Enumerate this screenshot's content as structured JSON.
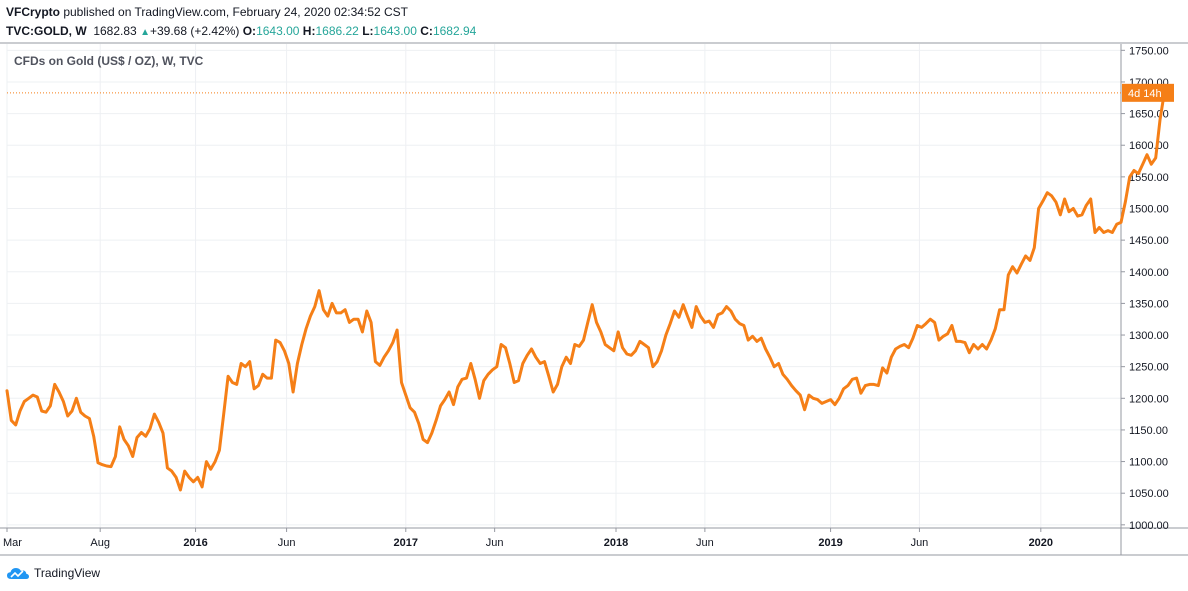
{
  "header": {
    "publisher": "VFCrypto",
    "published_text": " published on TradingView.com, February 24, 2020 02:34:52 CST",
    "symbol": "TVC:GOLD, W",
    "last": "1682.83",
    "change": "+39.68 (+2.42%)",
    "o_label": "O:",
    "o_value": "1643.00",
    "h_label": "H:",
    "h_value": "1686.22",
    "l_label": "L:",
    "l_value": "1643.00",
    "c_label": "C:",
    "c_value": "1682.94"
  },
  "footer": {
    "brand": "TradingView"
  },
  "colors": {
    "line": "#f57f17",
    "accent": "#f57f17",
    "up": "#26a69a",
    "grid": "#eef0f3",
    "axis": "#9598a1"
  },
  "chart_data": {
    "type": "line",
    "title": "CFDs on Gold (US$ / OZ), W, TVC",
    "current_label": "4d 14h",
    "current_value": 1682.83,
    "ylim": [
      995,
      1760
    ],
    "xlim": [
      0,
      257
    ],
    "y_ticks": [
      1000,
      1050,
      1100,
      1150,
      1200,
      1250,
      1300,
      1350,
      1400,
      1450,
      1500,
      1550,
      1600,
      1650,
      1700,
      1750
    ],
    "y_tick_labels": [
      "1000.00",
      "1050.00",
      "1100.00",
      "1150.00",
      "1200.00",
      "1250.00",
      "1300.00",
      "1350.00",
      "1400.00",
      "1450.00",
      "1500.00",
      "1550.00",
      "1600.00",
      "1650.00",
      "1700.00",
      "1750.00"
    ],
    "x_ticks": [
      {
        "label": "Mar",
        "x": 0,
        "bold": false
      },
      {
        "label": "Aug",
        "x": 21.5,
        "bold": false
      },
      {
        "label": "2016",
        "x": 43.5,
        "bold": true
      },
      {
        "label": "Jun",
        "x": 64.5,
        "bold": false
      },
      {
        "label": "2017",
        "x": 92,
        "bold": true
      },
      {
        "label": "Jun",
        "x": 112.5,
        "bold": false
      },
      {
        "label": "2018",
        "x": 140.5,
        "bold": true
      },
      {
        "label": "Jun",
        "x": 161,
        "bold": false
      },
      {
        "label": "2019",
        "x": 190,
        "bold": true
      },
      {
        "label": "Jun",
        "x": 210.5,
        "bold": false
      },
      {
        "label": "2020",
        "x": 238.5,
        "bold": true
      }
    ],
    "series": [
      {
        "values": [
          1212,
          1165,
          1158,
          1180,
          1195,
          1200,
          1205,
          1202,
          1180,
          1178,
          1188,
          1222,
          1210,
          1195,
          1172,
          1180,
          1200,
          1178,
          1172,
          1168,
          1140,
          1098,
          1095,
          1093,
          1092,
          1108,
          1155,
          1135,
          1125,
          1108,
          1138,
          1146,
          1140,
          1152,
          1175,
          1162,
          1145,
          1090,
          1085,
          1075,
          1055,
          1085,
          1075,
          1068,
          1075,
          1060,
          1100,
          1088,
          1100,
          1118,
          1175,
          1235,
          1225,
          1222,
          1255,
          1250,
          1258,
          1215,
          1220,
          1238,
          1232,
          1232,
          1292,
          1288,
          1275,
          1255,
          1210,
          1255,
          1285,
          1310,
          1330,
          1345,
          1370,
          1340,
          1330,
          1350,
          1335,
          1335,
          1340,
          1320,
          1325,
          1325,
          1305,
          1338,
          1320,
          1258,
          1252,
          1265,
          1275,
          1288,
          1308,
          1225,
          1205,
          1185,
          1178,
          1160,
          1135,
          1130,
          1145,
          1165,
          1188,
          1198,
          1210,
          1190,
          1218,
          1230,
          1232,
          1255,
          1230,
          1200,
          1228,
          1238,
          1245,
          1250,
          1285,
          1280,
          1255,
          1225,
          1228,
          1255,
          1268,
          1278,
          1265,
          1255,
          1258,
          1235,
          1210,
          1222,
          1250,
          1265,
          1255,
          1285,
          1282,
          1292,
          1320,
          1348,
          1320,
          1305,
          1285,
          1280,
          1275,
          1305,
          1280,
          1270,
          1268,
          1275,
          1290,
          1285,
          1280,
          1250,
          1258,
          1275,
          1300,
          1318,
          1338,
          1328,
          1348,
          1330,
          1312,
          1345,
          1330,
          1320,
          1322,
          1312,
          1332,
          1335,
          1345,
          1338,
          1325,
          1318,
          1315,
          1292,
          1298,
          1290,
          1295,
          1278,
          1265,
          1250,
          1255,
          1238,
          1230,
          1220,
          1212,
          1205,
          1182,
          1205,
          1200,
          1198,
          1192,
          1195,
          1198,
          1190,
          1200,
          1215,
          1220,
          1230,
          1232,
          1208,
          1220,
          1222,
          1222,
          1220,
          1248,
          1240,
          1265,
          1278,
          1282,
          1285,
          1280,
          1295,
          1315,
          1312,
          1318,
          1325,
          1320,
          1292,
          1298,
          1302,
          1315,
          1290,
          1290,
          1288,
          1272,
          1285,
          1278,
          1285,
          1278,
          1292,
          1310,
          1340,
          1340,
          1395,
          1408,
          1398,
          1412,
          1425,
          1418,
          1438,
          1500,
          1512,
          1525,
          1520,
          1510,
          1490,
          1515,
          1495,
          1500,
          1488,
          1490,
          1505,
          1515,
          1462,
          1470,
          1462,
          1465,
          1462,
          1475,
          1478,
          1510,
          1550,
          1560,
          1555,
          1570,
          1585,
          1570,
          1580,
          1640,
          1682.83
        ]
      }
    ]
  }
}
